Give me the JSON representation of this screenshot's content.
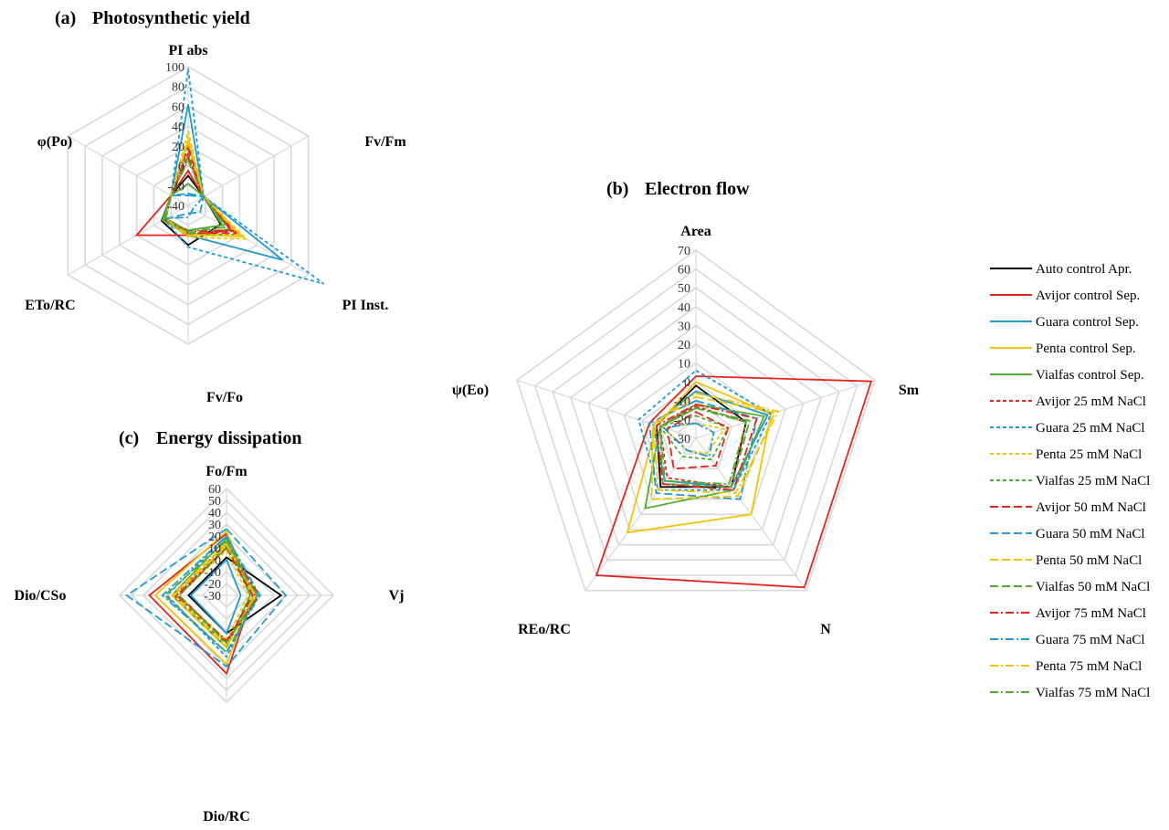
{
  "chart_data": [
    {
      "panel": "a",
      "type": "radar",
      "title_letter": "(a)",
      "title": "Photosynthetic yield",
      "axes": [
        "PI abs",
        "Fv/Fm",
        "PI Inst.",
        "Fv/Fo",
        "ETo/RC",
        "φ(Po)"
      ],
      "range": [
        -40,
        100
      ],
      "ticks": [
        -40,
        -20,
        0,
        20,
        40,
        60,
        80,
        100
      ],
      "tick_labels": [
        "-40",
        "-20",
        "0",
        "20",
        "40",
        "60",
        "80",
        "100"
      ],
      "series": [
        {
          "name": "Auto control Apr.",
          "values": [
            -10,
            -22,
            -2,
            0,
            -9,
            -20
          ]
        },
        {
          "name": "Avijor control Sep.",
          "values": [
            -5,
            -22,
            10,
            -10,
            20,
            -20
          ]
        },
        {
          "name": "Guara control Sep.",
          "values": [
            62,
            -22,
            70,
            -10,
            -10,
            -20
          ]
        },
        {
          "name": "Penta  control Sep.",
          "values": [
            25,
            -22,
            23,
            -12,
            -10,
            -20
          ]
        },
        {
          "name": "Vialfas control Sep.",
          "values": [
            -18,
            -22,
            0,
            -15,
            -10,
            -20
          ]
        },
        {
          "name": "Avijor 25 mM NaCl",
          "values": [
            12,
            -22,
            12,
            -12,
            -12,
            -20
          ]
        },
        {
          "name": "Guara 25 mM NaCl",
          "values": [
            98,
            -22,
            118,
            2,
            -12,
            -20
          ]
        },
        {
          "name": "Penta  25 mM NaCl",
          "values": [
            35,
            -22,
            28,
            -8,
            -12,
            -20
          ]
        },
        {
          "name": "Vialfas 25 mM NaCl",
          "values": [
            22,
            -22,
            18,
            -10,
            -12,
            -20
          ]
        },
        {
          "name": "Avijor 50 mM NaCl",
          "values": [
            18,
            -22,
            16,
            -12,
            -12,
            -20
          ]
        },
        {
          "name": "Guara 50 mM NaCl",
          "values": [
            -30,
            -22,
            -26,
            -32,
            -12,
            -20
          ]
        },
        {
          "name": "Penta 50 mM NaCl",
          "values": [
            24,
            -22,
            20,
            -10,
            -12,
            -20
          ]
        },
        {
          "name": "Vialfas 50 mM NaCl",
          "values": [
            10,
            -22,
            8,
            -12,
            -12,
            -20
          ]
        },
        {
          "name": "Avijor 75 mM NaCl",
          "values": [
            8,
            -22,
            10,
            -14,
            -14,
            -20
          ]
        },
        {
          "name": "Guara 75 mM NaCl",
          "values": [
            -28,
            -22,
            -34,
            -28,
            -14,
            -20
          ]
        },
        {
          "name": "Penta  75 mM NaCl",
          "values": [
            28,
            -22,
            22,
            -10,
            -14,
            -20
          ]
        },
        {
          "name": "Vialfas 75 mM NaCl",
          "values": [
            5,
            -22,
            4,
            -14,
            -14,
            -20
          ]
        }
      ]
    },
    {
      "panel": "b",
      "type": "radar",
      "title_letter": "(b)",
      "title": "Electron flow",
      "axes": [
        "Area",
        "Sm",
        "N",
        "REo/RC",
        "ψ(Eo)"
      ],
      "range": [
        -30,
        70
      ],
      "ticks": [
        -30,
        -20,
        -10,
        0,
        10,
        20,
        30,
        40,
        50,
        60,
        70
      ],
      "tick_labels": [
        "-30",
        "-20",
        "-10",
        "0",
        "10",
        "20",
        "30",
        "40",
        "50",
        "60",
        "70"
      ],
      "series": [
        {
          "name": "Auto control Apr.",
          "values": [
            -2,
            -2,
            2,
            2,
            -8
          ]
        },
        {
          "name": "Avijor control Sep.",
          "values": [
            3,
            68,
            68,
            60,
            -4
          ]
        },
        {
          "name": "Guara control Sep.",
          "values": [
            -5,
            10,
            2,
            -2,
            -6
          ]
        },
        {
          "name": "Penta  control Sep.",
          "values": [
            0,
            12,
            20,
            32,
            -8
          ]
        },
        {
          "name": "Vialfas control Sep.",
          "values": [
            -12,
            8,
            4,
            16,
            -10
          ]
        },
        {
          "name": "Avijor 25 mM NaCl",
          "values": [
            -13,
            -2,
            2,
            -4,
            -10
          ]
        },
        {
          "name": "Guara 25 mM NaCl",
          "values": [
            6,
            12,
            4,
            4,
            2
          ]
        },
        {
          "name": "Penta  25 mM NaCl",
          "values": [
            -22,
            -14,
            -20,
            -22,
            -12
          ]
        },
        {
          "name": "Vialfas 25 mM NaCl",
          "values": [
            -18,
            -12,
            -16,
            -18,
            -10
          ]
        },
        {
          "name": "Avijor 50 mM NaCl",
          "values": [
            -16,
            -12,
            -12,
            -10,
            -14
          ]
        },
        {
          "name": "Guara 50 mM NaCl",
          "values": [
            -10,
            4,
            10,
            6,
            -4
          ]
        },
        {
          "name": "Penta 50 mM NaCl",
          "values": [
            -8,
            14,
            8,
            10,
            -6
          ]
        },
        {
          "name": "Vialfas 50 mM NaCl",
          "values": [
            -14,
            0,
            2,
            0,
            -10
          ]
        },
        {
          "name": "Avijor 75 mM NaCl",
          "values": [
            -12,
            4,
            4,
            0,
            -8
          ]
        },
        {
          "name": "Guara 75 mM NaCl",
          "values": [
            -22,
            -20,
            -18,
            -22,
            -12
          ]
        },
        {
          "name": "Penta  75 mM NaCl",
          "values": [
            -6,
            16,
            6,
            4,
            -6
          ]
        },
        {
          "name": "Vialfas 75 mM NaCl",
          "values": [
            -14,
            -2,
            0,
            -2,
            -10
          ]
        }
      ]
    },
    {
      "panel": "c",
      "type": "radar",
      "title_letter": "(c)",
      "title": "Energy dissipation",
      "axes": [
        "Fo/Fm",
        "Vj",
        "Dio/RC",
        "Dio/CSo"
      ],
      "range": [
        -30,
        60
      ],
      "ticks": [
        -30,
        -20,
        -10,
        0,
        10,
        20,
        30,
        40,
        50,
        60
      ],
      "tick_labels": [
        "-30",
        "-20",
        "-10",
        "0",
        "10",
        "20",
        "30",
        "40",
        "50",
        "60"
      ],
      "series": [
        {
          "name": "Auto control Apr.",
          "values": [
            2,
            16,
            2,
            2
          ]
        },
        {
          "name": "Avijor control Sep.",
          "values": [
            22,
            -8,
            36,
            35
          ]
        },
        {
          "name": "Guara control Sep.",
          "values": [
            0,
            -18,
            2,
            0
          ]
        },
        {
          "name": "Penta  control Sep.",
          "values": [
            24,
            -8,
            28,
            30
          ]
        },
        {
          "name": "Vialfas control Sep.",
          "values": [
            18,
            -10,
            14,
            16
          ]
        },
        {
          "name": "Avijor 25 mM NaCl",
          "values": [
            14,
            -6,
            12,
            14
          ]
        },
        {
          "name": "Guara 25 mM NaCl",
          "values": [
            20,
            -4,
            22,
            20
          ]
        },
        {
          "name": "Penta  25 mM NaCl",
          "values": [
            8,
            -12,
            8,
            10
          ]
        },
        {
          "name": "Vialfas 25 mM NaCl",
          "values": [
            12,
            -10,
            12,
            12
          ]
        },
        {
          "name": "Avijor 50 mM NaCl",
          "values": [
            10,
            -8,
            10,
            10
          ]
        },
        {
          "name": "Guara 50 mM NaCl",
          "values": [
            26,
            20,
            30,
            54
          ]
        },
        {
          "name": "Penta 50 mM NaCl",
          "values": [
            14,
            -6,
            14,
            16
          ]
        },
        {
          "name": "Vialfas 50 mM NaCl",
          "values": [
            16,
            -4,
            18,
            22
          ]
        },
        {
          "name": "Avijor 75 mM NaCl",
          "values": [
            10,
            -2,
            8,
            12
          ]
        },
        {
          "name": "Guara 75 mM NaCl",
          "values": [
            20,
            -2,
            18,
            24
          ]
        },
        {
          "name": "Penta  75 mM NaCl",
          "values": [
            12,
            -6,
            12,
            14
          ]
        },
        {
          "name": "Vialfas 75 mM NaCl",
          "values": [
            10,
            -4,
            10,
            10
          ]
        }
      ]
    }
  ],
  "legend": {
    "placement": "right",
    "items": [
      {
        "label": "Auto control Apr.",
        "color": "#000000",
        "dash": "solid"
      },
      {
        "label": "Avijor control Sep.",
        "color": "#e8231b",
        "dash": "solid"
      },
      {
        "label": "Guara control Sep.",
        "color": "#1f9ad6",
        "dash": "solid"
      },
      {
        "label": "Penta  control Sep.",
        "color": "#f2c500",
        "dash": "solid"
      },
      {
        "label": "Vialfas control Sep.",
        "color": "#4fae32",
        "dash": "solid"
      },
      {
        "label": "Avijor 25 mM NaCl",
        "color": "#e8231b",
        "dash": "dash"
      },
      {
        "label": "Guara 25 mM NaCl",
        "color": "#1f9ad6",
        "dash": "dash"
      },
      {
        "label": "Penta  25 mM NaCl",
        "color": "#f2c500",
        "dash": "dash"
      },
      {
        "label": "Vialfas 25 mM NaCl",
        "color": "#4fae32",
        "dash": "dash"
      },
      {
        "label": "Avijor 50 mM NaCl",
        "color": "#e8231b",
        "dash": "longdash"
      },
      {
        "label": "Guara 50 mM NaCl",
        "color": "#1f9ad6",
        "dash": "longdash"
      },
      {
        "label": "Penta 50 mM NaCl",
        "color": "#f2c500",
        "dash": "longdash"
      },
      {
        "label": "Vialfas 50 mM NaCl",
        "color": "#4fae32",
        "dash": "longdash"
      },
      {
        "label": "Avijor 75 mM NaCl",
        "color": "#e8231b",
        "dash": "dashdot"
      },
      {
        "label": "Guara 75 mM NaCl",
        "color": "#1f9ad6",
        "dash": "dashdot"
      },
      {
        "label": "Penta  75 mM NaCl",
        "color": "#f2c500",
        "dash": "dashdot"
      },
      {
        "label": "Vialfas 75 mM NaCl",
        "color": "#4fae32",
        "dash": "dashdot"
      }
    ]
  },
  "grid_color": "#d9d9d9"
}
